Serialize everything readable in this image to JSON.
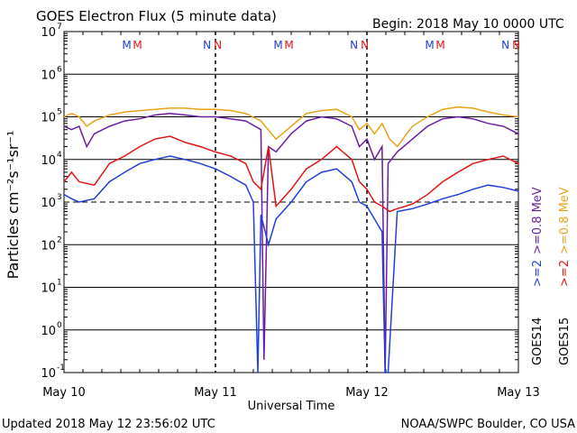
{
  "header": {
    "title": "GOES Electron Flux (5 minute data)",
    "begin": "Begin: 2018 May 10 0000 UTC"
  },
  "footer": {
    "updated": "Updated 2018 May 12 23:56:02 UTC",
    "credit": "NOAA/SWPC Boulder, CO USA"
  },
  "colors": {
    "goes14_2mev": "#1f3fdc",
    "goes15_2mev": "#e31414",
    "goes14_08mev": "#6a1d9e",
    "goes15_08mev": "#e8a317",
    "marker_m_blue": "#1f3fdc",
    "marker_m_red": "#e31414"
  },
  "chart_data": {
    "type": "line",
    "title": "GOES Electron Flux (5 minute data)",
    "xlabel": "Universal Time",
    "ylabel": "Particles cm⁻²s⁻¹sr⁻¹",
    "y_scale": "log",
    "ylim": [
      0.1,
      10000000
    ],
    "x_units": "days since 2018 May 10 0000 UTC",
    "xlim": [
      0,
      3
    ],
    "x_ticks": [
      "May 10",
      "May 11",
      "May 12",
      "May 13"
    ],
    "y_ticks": [
      {
        "base": "10",
        "exp": "-1"
      },
      {
        "base": "10",
        "exp": "0"
      },
      {
        "base": "10",
        "exp": "1"
      },
      {
        "base": "10",
        "exp": "2"
      },
      {
        "base": "10",
        "exp": "3"
      },
      {
        "base": "10",
        "exp": "4"
      },
      {
        "base": "10",
        "exp": "5"
      },
      {
        "base": "10",
        "exp": "6"
      },
      {
        "base": "10",
        "exp": "7"
      }
    ],
    "threshold": 1000,
    "grid": true,
    "markers": [
      {
        "day": 0.45,
        "labels": [
          {
            "text": "M",
            "color": "#1f3fdc"
          },
          {
            "text": "M",
            "color": "#e31414"
          }
        ]
      },
      {
        "day": 1.0,
        "labels": []
      },
      {
        "day": 1.45,
        "labels": [
          {
            "text": "M",
            "color": "#1f3fdc"
          },
          {
            "text": "M",
            "color": "#e31414"
          }
        ]
      },
      {
        "day": 1.95,
        "labels": [
          {
            "text": "N",
            "color": "#1f3fdc"
          },
          {
            "text": "N",
            "color": "#e31414"
          }
        ]
      },
      {
        "day": 0.98,
        "labels": [
          {
            "text": "N",
            "color": "#1f3fdc"
          },
          {
            "text": "N",
            "color": "#e31414"
          }
        ]
      },
      {
        "day": 2.45,
        "labels": [
          {
            "text": "M",
            "color": "#1f3fdc"
          },
          {
            "text": "M",
            "color": "#e31414"
          }
        ]
      },
      {
        "day": 2.95,
        "labels": [
          {
            "text": "N",
            "color": "#1f3fdc"
          },
          {
            "text": "N",
            "color": "#e31414"
          }
        ]
      }
    ],
    "legend_right": [
      {
        "text": "GOES14",
        "parts": [
          {
            "text": ">=2",
            "color": "#1f3fdc"
          },
          {
            "text": ">=0.8 MeV",
            "color": "#6a1d9e"
          }
        ]
      },
      {
        "text": "GOES15",
        "parts": [
          {
            "text": ">=2",
            "color": "#e31414"
          },
          {
            "text": ">=0.8 MeV",
            "color": "#e8a317"
          }
        ]
      }
    ],
    "series": [
      {
        "name": "GOES15 >=0.8 MeV",
        "color": "#e8a317",
        "points": [
          [
            0,
            100000
          ],
          [
            0.05,
            120000
          ],
          [
            0.1,
            100000
          ],
          [
            0.15,
            60000
          ],
          [
            0.2,
            80000
          ],
          [
            0.3,
            110000
          ],
          [
            0.4,
            130000
          ],
          [
            0.5,
            140000
          ],
          [
            0.6,
            150000
          ],
          [
            0.7,
            160000
          ],
          [
            0.8,
            160000
          ],
          [
            0.9,
            150000
          ],
          [
            1.0,
            150000
          ],
          [
            1.1,
            140000
          ],
          [
            1.2,
            120000
          ],
          [
            1.3,
            80000
          ],
          [
            1.4,
            30000
          ],
          [
            1.5,
            60000
          ],
          [
            1.6,
            120000
          ],
          [
            1.7,
            140000
          ],
          [
            1.8,
            150000
          ],
          [
            1.9,
            100000
          ],
          [
            1.95,
            50000
          ],
          [
            2.0,
            70000
          ],
          [
            2.05,
            40000
          ],
          [
            2.1,
            70000
          ],
          [
            2.15,
            30000
          ],
          [
            2.2,
            20000
          ],
          [
            2.3,
            60000
          ],
          [
            2.4,
            100000
          ],
          [
            2.5,
            150000
          ],
          [
            2.6,
            170000
          ],
          [
            2.7,
            160000
          ],
          [
            2.8,
            130000
          ],
          [
            2.9,
            110000
          ],
          [
            3.0,
            100000
          ]
        ]
      },
      {
        "name": "GOES14 >=0.8 MeV",
        "color": "#6a1d9e",
        "points": [
          [
            0,
            60000
          ],
          [
            0.05,
            50000
          ],
          [
            0.1,
            60000
          ],
          [
            0.15,
            20000
          ],
          [
            0.2,
            40000
          ],
          [
            0.3,
            60000
          ],
          [
            0.4,
            80000
          ],
          [
            0.5,
            90000
          ],
          [
            0.6,
            110000
          ],
          [
            0.7,
            120000
          ],
          [
            0.8,
            110000
          ],
          [
            0.9,
            100000
          ],
          [
            1.0,
            100000
          ],
          [
            1.1,
            90000
          ],
          [
            1.2,
            80000
          ],
          [
            1.3,
            50000
          ],
          [
            1.32,
            0.2
          ],
          [
            1.35,
            20000
          ],
          [
            1.4,
            15000
          ],
          [
            1.5,
            40000
          ],
          [
            1.6,
            80000
          ],
          [
            1.7,
            100000
          ],
          [
            1.8,
            90000
          ],
          [
            1.9,
            60000
          ],
          [
            1.95,
            20000
          ],
          [
            2.0,
            30000
          ],
          [
            2.05,
            10000
          ],
          [
            2.1,
            20000
          ],
          [
            2.12,
            0.1
          ],
          [
            2.14,
            8000
          ],
          [
            2.2,
            15000
          ],
          [
            2.3,
            30000
          ],
          [
            2.4,
            60000
          ],
          [
            2.5,
            90000
          ],
          [
            2.6,
            100000
          ],
          [
            2.7,
            90000
          ],
          [
            2.8,
            70000
          ],
          [
            2.9,
            60000
          ],
          [
            3.0,
            40000
          ]
        ]
      },
      {
        "name": "GOES15 >=2 MeV",
        "color": "#e31414",
        "points": [
          [
            0,
            3000
          ],
          [
            0.05,
            5000
          ],
          [
            0.1,
            3000
          ],
          [
            0.2,
            2500
          ],
          [
            0.3,
            8000
          ],
          [
            0.4,
            12000
          ],
          [
            0.5,
            20000
          ],
          [
            0.6,
            30000
          ],
          [
            0.7,
            35000
          ],
          [
            0.8,
            25000
          ],
          [
            0.9,
            20000
          ],
          [
            1.0,
            15000
          ],
          [
            1.1,
            12000
          ],
          [
            1.2,
            8000
          ],
          [
            1.25,
            3000
          ],
          [
            1.3,
            2000
          ],
          [
            1.35,
            20000
          ],
          [
            1.4,
            800
          ],
          [
            1.5,
            2000
          ],
          [
            1.6,
            6000
          ],
          [
            1.7,
            10000
          ],
          [
            1.8,
            20000
          ],
          [
            1.9,
            10000
          ],
          [
            1.95,
            3000
          ],
          [
            2.0,
            2000
          ],
          [
            2.05,
            1000
          ],
          [
            2.1,
            800
          ],
          [
            2.15,
            600
          ],
          [
            2.2,
            700
          ],
          [
            2.3,
            900
          ],
          [
            2.4,
            1500
          ],
          [
            2.5,
            3000
          ],
          [
            2.6,
            5000
          ],
          [
            2.7,
            8000
          ],
          [
            2.8,
            10000
          ],
          [
            2.9,
            12000
          ],
          [
            3.0,
            8000
          ]
        ]
      },
      {
        "name": "GOES14 >=2 MeV",
        "color": "#1f3fdc",
        "points": [
          [
            0,
            1500
          ],
          [
            0.05,
            1200
          ],
          [
            0.1,
            1000
          ],
          [
            0.2,
            1200
          ],
          [
            0.3,
            3000
          ],
          [
            0.4,
            5000
          ],
          [
            0.5,
            8000
          ],
          [
            0.6,
            10000
          ],
          [
            0.7,
            12000
          ],
          [
            0.8,
            10000
          ],
          [
            0.9,
            8000
          ],
          [
            1.0,
            6000
          ],
          [
            1.1,
            4000
          ],
          [
            1.2,
            2500
          ],
          [
            1.25,
            1000
          ],
          [
            1.28,
            0.1
          ],
          [
            1.3,
            500
          ],
          [
            1.35,
            100
          ],
          [
            1.4,
            400
          ],
          [
            1.5,
            1000
          ],
          [
            1.6,
            3000
          ],
          [
            1.7,
            5000
          ],
          [
            1.8,
            6000
          ],
          [
            1.9,
            3000
          ],
          [
            1.95,
            1000
          ],
          [
            2.0,
            800
          ],
          [
            2.05,
            400
          ],
          [
            2.1,
            200
          ],
          [
            2.12,
            0.1
          ],
          [
            2.14,
            0.1
          ],
          [
            2.2,
            600
          ],
          [
            2.3,
            700
          ],
          [
            2.4,
            900
          ],
          [
            2.5,
            1200
          ],
          [
            2.6,
            1500
          ],
          [
            2.7,
            2000
          ],
          [
            2.8,
            2500
          ],
          [
            2.9,
            2200
          ],
          [
            3.0,
            1800
          ]
        ]
      }
    ]
  }
}
